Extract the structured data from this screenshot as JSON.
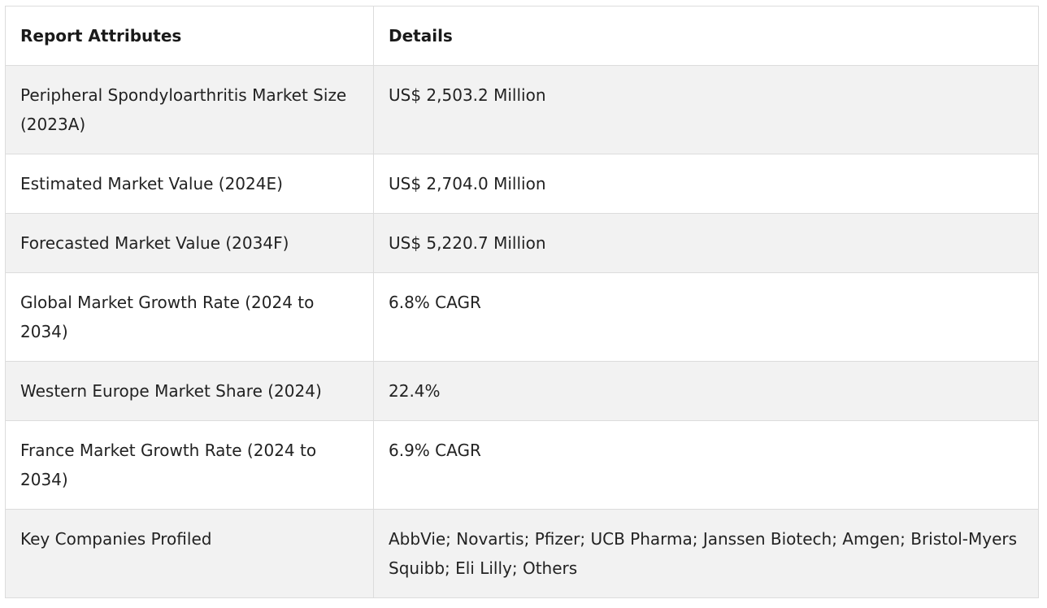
{
  "table": {
    "headers": [
      "Report Attributes",
      "Details"
    ],
    "rows": [
      {
        "attribute": "Peripheral Spondyloarthritis Market Size (2023A)",
        "detail": "US$ 2,503.2 Million"
      },
      {
        "attribute": "Estimated Market Value (2024E)",
        "detail": "US$ 2,704.0 Million"
      },
      {
        "attribute": "Forecasted Market Value (2034F)",
        "detail": "US$ 5,220.7 Million"
      },
      {
        "attribute": "Global Market Growth Rate (2024 to 2034)",
        "detail": "6.8% CAGR"
      },
      {
        "attribute": "Western Europe Market Share (2024)",
        "detail": "22.4%"
      },
      {
        "attribute": "France Market Growth Rate (2024 to 2034)",
        "detail": "6.9% CAGR"
      },
      {
        "attribute": "Key Companies Profiled",
        "detail": "AbbVie; Novartis; Pfizer; UCB Pharma; Janssen Biotech; Amgen; Bristol-Myers Squibb; Eli Lilly; Others"
      }
    ]
  }
}
